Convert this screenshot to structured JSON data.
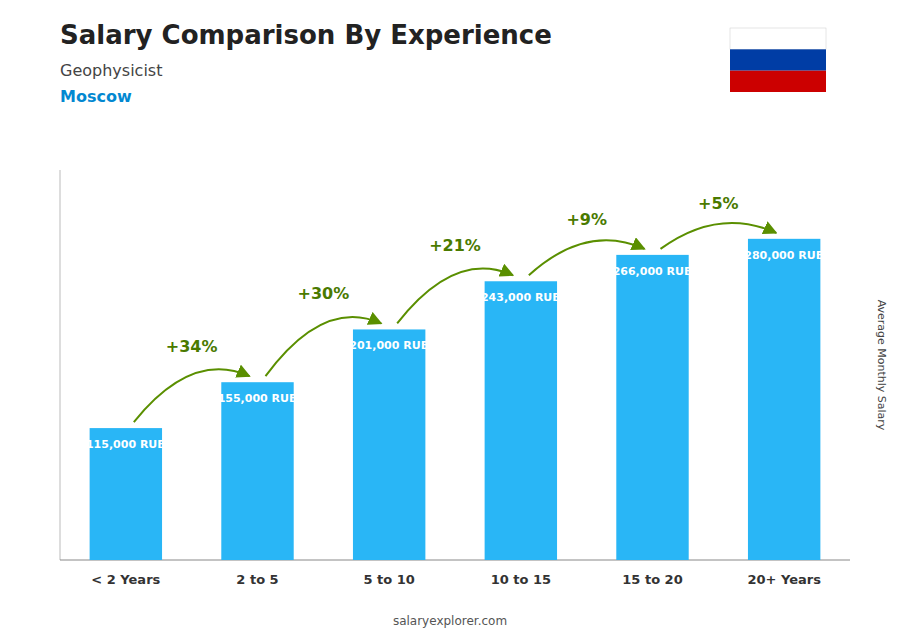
{
  "chart_data": {
    "type": "bar",
    "title": "Salary Comparison By Experience",
    "subtitle": [
      "Geophysicist",
      "Moscow"
    ],
    "ylabel": "Average Monthly Salary",
    "categories": [
      "< 2 Years",
      "2 to 5",
      "5 to 10",
      "10 to 15",
      "15 to 20",
      "20+ Years"
    ],
    "values": [
      115000,
      155000,
      201000,
      243000,
      266000,
      280000
    ],
    "value_labels": [
      "115,000 RUB",
      "155,000 RUB",
      "201,000 RUB",
      "243,000 RUB",
      "266,000 RUB",
      "280,000 RUB"
    ],
    "data_labels": true,
    "annotations": [
      "+34%",
      "+30%",
      "+21%",
      "+9%",
      "+5%"
    ],
    "source": "salaryexplorer.com",
    "color": "#29b6f6",
    "ylim": [
      0,
      340000
    ],
    "tick_labels": "x",
    "grid": false
  }
}
